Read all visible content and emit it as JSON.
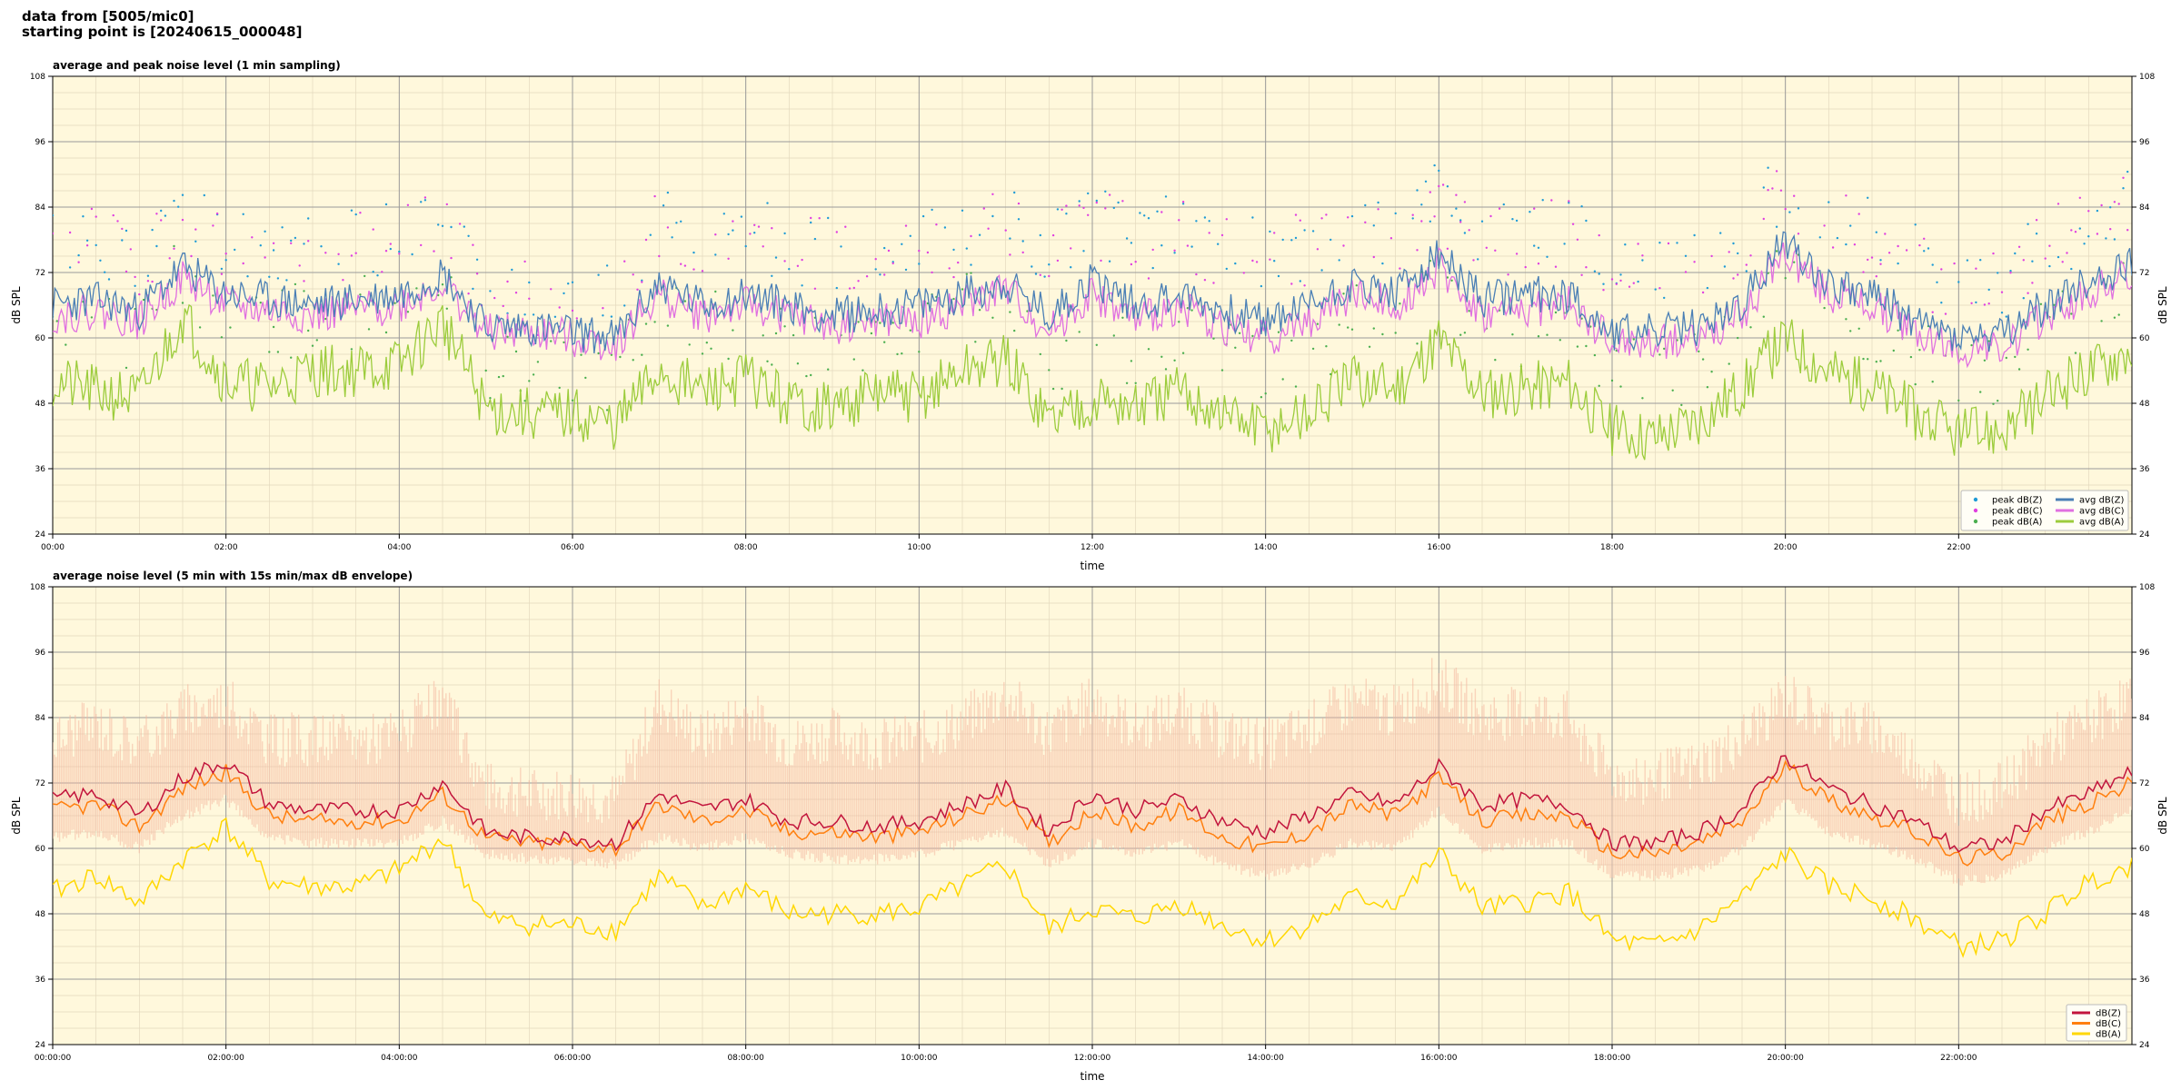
{
  "header": {
    "line1": "data from [5005/mic0]",
    "line2": "starting point is [20240615_000048]"
  },
  "colors": {
    "plot_bg": "#fff8dc",
    "peak_z": "#1f9bd6",
    "peak_c": "#e040e0",
    "peak_a": "#4caf50",
    "avg_z": "#4a7fb5",
    "avg_c": "#e070e0",
    "avg_a": "#9ccc3c",
    "dbz": "#c2143c",
    "dbc": "#ff7f0e",
    "dba": "#ffd700",
    "envelope": "#f5b7a0"
  },
  "chart_data": [
    {
      "type": "line",
      "title": "average and peak noise level (1 min sampling)",
      "xlabel": "time",
      "ylabel": "dB SPL",
      "ylabel_right": "dB SPL",
      "xlim": [
        0,
        24
      ],
      "ylim": [
        24,
        108
      ],
      "yticks": [
        24,
        36,
        48,
        60,
        72,
        84,
        96,
        108
      ],
      "xticks": [
        "00:00",
        "02:00",
        "04:00",
        "06:00",
        "08:00",
        "10:00",
        "12:00",
        "14:00",
        "16:00",
        "18:00",
        "20:00",
        "22:00"
      ],
      "grid": true,
      "legend_position": "bottom-right",
      "legend": [
        "peak dB(Z)",
        "peak dB(C)",
        "peak dB(A)",
        "avg dB(Z)",
        "avg dB(C)",
        "avg dB(A)"
      ],
      "x": [
        0.0,
        0.5,
        1.0,
        1.5,
        2.0,
        2.5,
        3.0,
        3.5,
        4.0,
        4.5,
        5.0,
        5.5,
        6.0,
        6.5,
        7.0,
        7.5,
        8.0,
        8.5,
        9.0,
        9.5,
        10.0,
        10.5,
        11.0,
        11.5,
        12.0,
        12.5,
        13.0,
        13.5,
        14.0,
        14.5,
        15.0,
        15.5,
        16.0,
        16.5,
        17.0,
        17.5,
        18.0,
        18.5,
        19.0,
        19.5,
        20.0,
        20.5,
        21.0,
        21.5,
        22.0,
        22.5,
        23.0,
        23.5,
        24.0
      ],
      "series": [
        {
          "name": "avg dB(Z)",
          "values": [
            66,
            67,
            65,
            73,
            68,
            67,
            66,
            67,
            68,
            72,
            62,
            62,
            61,
            60,
            70,
            66,
            68,
            66,
            64,
            65,
            66,
            68,
            70,
            64,
            71,
            66,
            68,
            65,
            63,
            66,
            70,
            68,
            75,
            67,
            68,
            68,
            61,
            61,
            62,
            66,
            78,
            70,
            68,
            63,
            60,
            60,
            66,
            70,
            74
          ]
        },
        {
          "name": "avg dB(C)",
          "values": [
            64,
            65,
            63,
            71,
            66,
            65,
            64,
            65,
            66,
            70,
            61,
            61,
            60,
            59,
            68,
            64,
            66,
            64,
            62,
            63,
            63,
            66,
            69,
            61,
            68,
            63,
            66,
            62,
            60,
            63,
            68,
            66,
            73,
            64,
            65,
            66,
            59,
            59,
            60,
            64,
            76,
            68,
            66,
            61,
            58,
            58,
            64,
            68,
            72
          ]
        },
        {
          "name": "avg dB(A)",
          "values": [
            52,
            50,
            49,
            64,
            52,
            51,
            54,
            54,
            55,
            63,
            47,
            46,
            46,
            44,
            54,
            50,
            53,
            48,
            47,
            50,
            49,
            54,
            56,
            45,
            49,
            47,
            50,
            46,
            43,
            46,
            52,
            51,
            60,
            50,
            51,
            52,
            43,
            42,
            45,
            51,
            60,
            54,
            51,
            46,
            42,
            43,
            49,
            54,
            58
          ]
        },
        {
          "name": "peak dB(Z)",
          "values": [
            74,
            75,
            73,
            80,
            76,
            74,
            73,
            75,
            76,
            80,
            66,
            66,
            64,
            64,
            79,
            73,
            76,
            74,
            73,
            74,
            74,
            76,
            79,
            73,
            80,
            75,
            77,
            74,
            72,
            75,
            78,
            76,
            83,
            75,
            77,
            77,
            69,
            70,
            71,
            75,
            86,
            78,
            77,
            71,
            66,
            67,
            75,
            78,
            82
          ]
        },
        {
          "name": "peak dB(C)",
          "values": [
            73,
            74,
            72,
            79,
            75,
            73,
            72,
            74,
            75,
            79,
            65,
            65,
            63,
            63,
            78,
            72,
            75,
            73,
            72,
            73,
            73,
            75,
            78,
            72,
            79,
            74,
            76,
            73,
            71,
            74,
            77,
            75,
            82,
            74,
            76,
            76,
            68,
            69,
            70,
            74,
            85,
            77,
            76,
            70,
            65,
            66,
            74,
            77,
            81
          ]
        },
        {
          "name": "peak dB(A)",
          "values": [
            60,
            58,
            57,
            70,
            60,
            59,
            62,
            62,
            63,
            70,
            53,
            52,
            52,
            50,
            62,
            58,
            61,
            56,
            55,
            58,
            57,
            62,
            64,
            53,
            57,
            55,
            58,
            54,
            51,
            54,
            60,
            59,
            67,
            58,
            59,
            60,
            51,
            50,
            53,
            59,
            68,
            62,
            59,
            54,
            50,
            51,
            57,
            62,
            66
          ]
        }
      ]
    },
    {
      "type": "line",
      "title": "average noise level (5 min with 15s min/max dB envelope)",
      "xlabel": "time",
      "ylabel": "dB SPL",
      "ylabel_right": "dB SPL",
      "xlim": [
        0,
        24
      ],
      "ylim": [
        24,
        108
      ],
      "yticks": [
        24,
        36,
        48,
        60,
        72,
        84,
        96,
        108
      ],
      "xticks": [
        "00:00:00",
        "02:00:00",
        "04:00:00",
        "06:00:00",
        "08:00:00",
        "10:00:00",
        "12:00:00",
        "14:00:00",
        "16:00:00",
        "18:00:00",
        "20:00:00",
        "22:00:00"
      ],
      "grid": true,
      "legend_position": "bottom-right",
      "legend": [
        "dB(Z)",
        "dB(C)",
        "dB(A)"
      ],
      "x": [
        0.0,
        0.5,
        1.0,
        1.5,
        2.0,
        2.5,
        3.0,
        3.5,
        4.0,
        4.5,
        5.0,
        5.5,
        6.0,
        6.5,
        7.0,
        7.5,
        8.0,
        8.5,
        9.0,
        9.5,
        10.0,
        10.5,
        11.0,
        11.5,
        12.0,
        12.5,
        13.0,
        13.5,
        14.0,
        14.5,
        15.0,
        15.5,
        16.0,
        16.5,
        17.0,
        17.5,
        18.0,
        18.5,
        19.0,
        19.5,
        20.0,
        20.5,
        21.0,
        21.5,
        22.0,
        22.5,
        23.0,
        23.5,
        24.0
      ],
      "series": [
        {
          "name": "dB(Z)",
          "values": [
            69,
            70,
            66,
            73,
            76,
            68,
            67,
            67,
            67,
            72,
            63,
            62,
            62,
            61,
            70,
            67,
            69,
            65,
            65,
            64,
            65,
            68,
            71,
            63,
            70,
            67,
            69,
            65,
            63,
            66,
            70,
            68,
            75,
            68,
            69,
            68,
            61,
            61,
            63,
            67,
            77,
            71,
            68,
            65,
            60,
            61,
            67,
            70,
            74
          ]
        },
        {
          "name": "dB(C)",
          "values": [
            67,
            68,
            64,
            71,
            74,
            66,
            65,
            65,
            65,
            70,
            62,
            61,
            61,
            60,
            68,
            65,
            67,
            63,
            63,
            62,
            63,
            66,
            69,
            61,
            67,
            64,
            67,
            62,
            60,
            63,
            68,
            66,
            73,
            65,
            66,
            66,
            59,
            59,
            61,
            65,
            75,
            69,
            66,
            63,
            58,
            59,
            65,
            68,
            72
          ]
        },
        {
          "name": "dB(A)",
          "values": [
            52,
            55,
            50,
            58,
            64,
            54,
            53,
            53,
            56,
            62,
            47,
            46,
            46,
            45,
            55,
            49,
            53,
            48,
            48,
            48,
            49,
            53,
            57,
            45,
            49,
            47,
            50,
            46,
            43,
            46,
            51,
            50,
            59,
            49,
            50,
            52,
            43,
            42,
            45,
            51,
            59,
            53,
            51,
            47,
            42,
            43,
            48,
            54,
            57
          ]
        },
        {
          "name": "envelope max",
          "values": [
            75,
            78,
            74,
            80,
            82,
            75,
            75,
            75,
            76,
            82,
            66,
            65,
            65,
            64,
            82,
            75,
            80,
            74,
            76,
            74,
            75,
            78,
            83,
            76,
            82,
            77,
            80,
            76,
            74,
            77,
            82,
            80,
            86,
            79,
            80,
            79,
            68,
            68,
            70,
            75,
            83,
            78,
            77,
            71,
            64,
            66,
            74,
            78,
            83
          ]
        },
        {
          "name": "envelope min",
          "values": [
            63,
            64,
            61,
            67,
            70,
            63,
            62,
            62,
            62,
            66,
            60,
            59,
            59,
            58,
            63,
            61,
            63,
            60,
            59,
            59,
            60,
            62,
            64,
            58,
            62,
            60,
            62,
            58,
            56,
            58,
            62,
            61,
            68,
            61,
            62,
            62,
            56,
            56,
            57,
            61,
            70,
            64,
            62,
            59,
            55,
            56,
            61,
            64,
            68
          ]
        }
      ]
    }
  ]
}
